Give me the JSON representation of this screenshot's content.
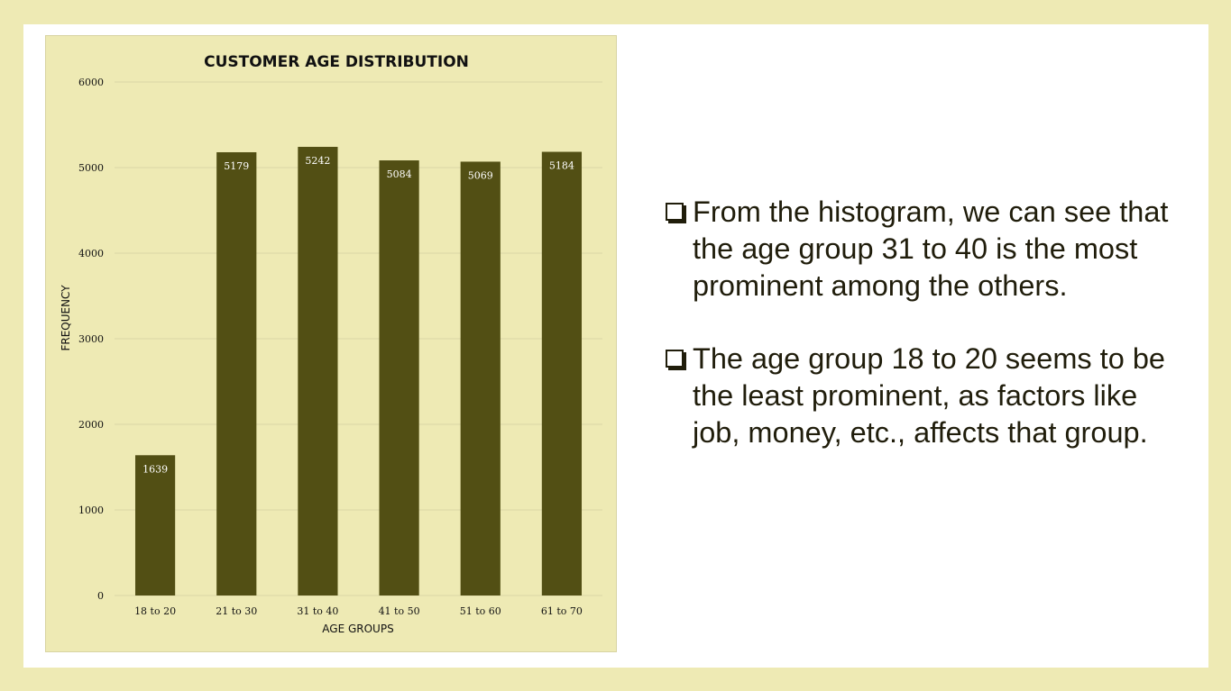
{
  "chart_data": {
    "type": "bar",
    "title": "CUSTOMER AGE DISTRIBUTION",
    "xlabel": "AGE GROUPS",
    "ylabel": "FREQUENCY",
    "categories": [
      "18 to 20",
      "21 to 30",
      "31 to 40",
      "41 to 50",
      "51 to 60",
      "61 to 70"
    ],
    "values": [
      1639,
      5179,
      5242,
      5084,
      5069,
      5184
    ],
    "data_labels": [
      "1639",
      "5179",
      "5242",
      "5084",
      "5069",
      "5184"
    ],
    "ylim": [
      0,
      6000
    ],
    "yticks": [
      0,
      1000,
      2000,
      3000,
      4000,
      5000,
      6000
    ],
    "ytick_labels": [
      "0",
      "1000",
      "2000",
      "3000",
      "4000",
      "5000",
      "6000"
    ],
    "grid": true,
    "legend": "none",
    "bar_color": "#524f14",
    "background_color": "#eeeab4"
  },
  "bullets": [
    "From the histogram, we can see that the age group 31 to 40 is the most prominent among the others.",
    "The age group 18 to 20 seems to be the least prominent, as factors like job, money, etc., affects that group."
  ],
  "colors": {
    "page_background": "#eeeab4",
    "slide_background": "#ffffff",
    "text": "#201d0b"
  }
}
